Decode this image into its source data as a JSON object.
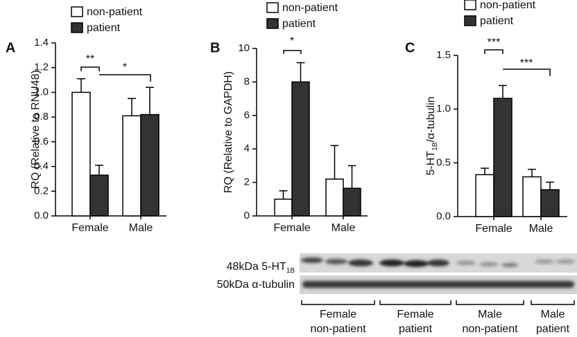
{
  "chart_data": [
    {
      "type": "bar",
      "panel": "A",
      "ylabel": "RQ (Relative to RNU48)",
      "categories": [
        "Female",
        "Male"
      ],
      "series": [
        {
          "name": "non-patient",
          "color": "#ffffff",
          "values": [
            1.0,
            0.81
          ],
          "errors": [
            0.11,
            0.14
          ]
        },
        {
          "name": "patient",
          "color": "#333333",
          "values": [
            0.33,
            0.82
          ],
          "errors": [
            0.08,
            0.22
          ]
        }
      ],
      "ylim": [
        0,
        1.4
      ],
      "yticks": [
        {
          "value": 0,
          "label": "0.0"
        },
        0.2,
        0.4,
        0.6,
        0.8,
        {
          "value": 1,
          "label": "1.0"
        },
        1.2,
        1.4
      ],
      "annotations": [
        "**",
        "*"
      ]
    },
    {
      "type": "bar",
      "panel": "B",
      "ylabel": "RQ (Relative to GAPDH)",
      "categories": [
        "Female",
        "Male"
      ],
      "series": [
        {
          "name": "non-patient",
          "color": "#ffffff",
          "values": [
            1.0,
            2.2
          ],
          "errors": [
            0.5,
            2.0
          ]
        },
        {
          "name": "patient",
          "color": "#333333",
          "values": [
            8.0,
            1.65
          ],
          "errors": [
            1.15,
            1.35
          ]
        }
      ],
      "ylim": [
        0,
        10
      ],
      "yticks": [
        0,
        2,
        4,
        6,
        8,
        10
      ],
      "annotations": [
        "*"
      ]
    },
    {
      "type": "bar",
      "panel": "C",
      "ylabel": {
        "text": "5-HT",
        "sub": "1B",
        "rest": "/α-tubulin"
      },
      "categories": [
        "Female",
        "Male"
      ],
      "series": [
        {
          "name": "non-patient",
          "color": "#ffffff",
          "values": [
            0.39,
            0.37
          ],
          "errors": [
            0.06,
            0.07
          ]
        },
        {
          "name": "patient",
          "color": "#333333",
          "values": [
            1.1,
            0.25
          ],
          "errors": [
            0.12,
            0.07
          ]
        }
      ],
      "ylim": [
        0,
        1.5
      ],
      "yticks": [
        {
          "value": 0,
          "label": "0.0"
        },
        0.5,
        {
          "value": 1,
          "label": "1.0"
        },
        1.5
      ],
      "annotations": [
        "***",
        "***"
      ]
    }
  ],
  "blot": {
    "rows": [
      {
        "label": "48kDa 5-HT",
        "sub": "1B"
      },
      {
        "label": "50kDa α-tubulin"
      }
    ],
    "groups": [
      [
        "Female",
        "non-patient"
      ],
      [
        "Female",
        "patient"
      ],
      [
        "Male",
        "non-patient"
      ],
      [
        "Male",
        "patient"
      ]
    ]
  }
}
